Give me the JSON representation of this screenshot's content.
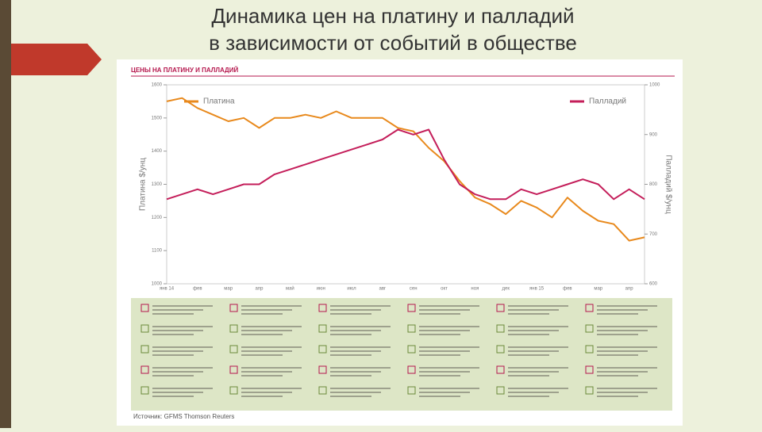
{
  "title": "Динамика цен на платину и палладий в зависимости от событий в обществе",
  "chart_data": {
    "type": "line",
    "title": "ЦЕНЫ НА ПЛАТИНУ И ПАЛЛАДИЙ",
    "categories": [
      "янв 14",
      null,
      "фев",
      null,
      "мар",
      null,
      "апр",
      null,
      "май",
      null,
      "июн",
      null,
      "июл",
      null,
      "авг",
      null,
      "сен",
      null,
      "окт",
      null,
      "ноя",
      null,
      "дек",
      null,
      "янв 15",
      null,
      "фев",
      null,
      "мар",
      null,
      "апр",
      null
    ],
    "series": [
      {
        "name": "Платина",
        "color": "#e8891c",
        "axis": "y",
        "values": [
          1550,
          1560,
          1530,
          1510,
          1490,
          1500,
          1470,
          1500,
          1500,
          1510,
          1500,
          1520,
          1500,
          1500,
          1500,
          1470,
          1460,
          1410,
          1370,
          1310,
          1260,
          1240,
          1210,
          1250,
          1230,
          1200,
          1260,
          1220,
          1190,
          1180,
          1130,
          1140
        ]
      },
      {
        "name": "Палладий",
        "color": "#c41e5a",
        "axis": "y2",
        "values": [
          770,
          780,
          790,
          780,
          790,
          800,
          800,
          820,
          830,
          840,
          850,
          860,
          870,
          880,
          890,
          910,
          900,
          910,
          850,
          800,
          780,
          770,
          770,
          790,
          780,
          790,
          800,
          810,
          800,
          770,
          790,
          770
        ]
      }
    ],
    "ylabel": "Платина $/унц",
    "y2label": "Палладий $/унц",
    "ylim": [
      1000,
      1600
    ],
    "yticks": [
      1000,
      1100,
      1200,
      1300,
      1400,
      1500,
      1600
    ],
    "y2lim": [
      600,
      1000
    ],
    "y2ticks": [
      600,
      700,
      800,
      900,
      1000
    ],
    "source": "Источник: GFMS Thomson Reuters"
  }
}
